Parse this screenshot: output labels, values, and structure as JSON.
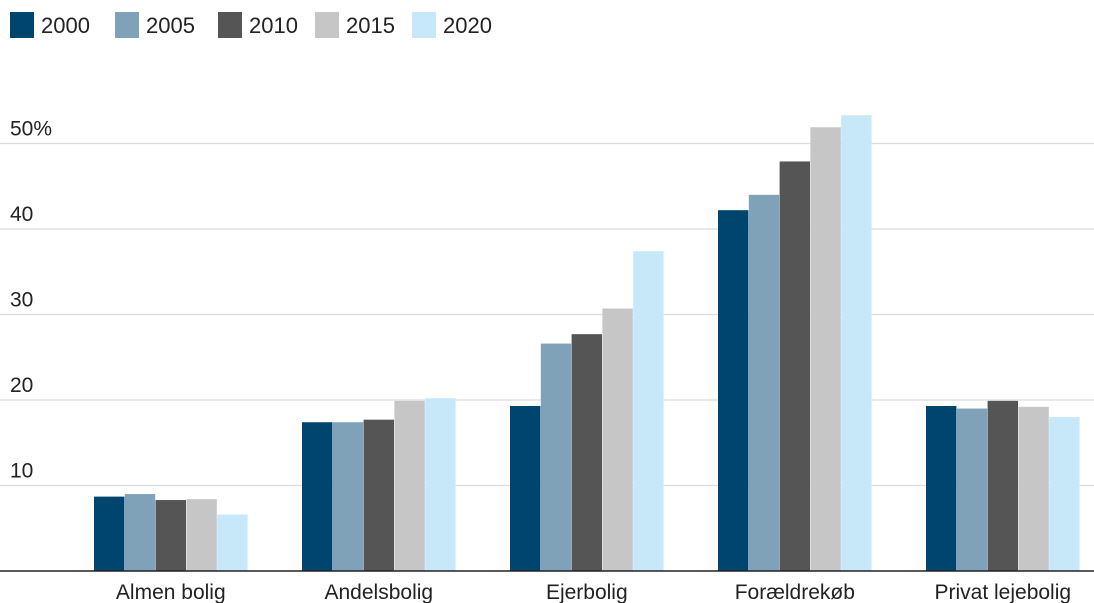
{
  "chart_data": {
    "type": "bar",
    "categories": [
      "Almen bolig",
      "Andelsbolig",
      "Ejerbolig",
      "Forældrekøb",
      "Privat lejebolig"
    ],
    "series": [
      {
        "name": "2000",
        "color": "#00456e",
        "values": [
          8.7,
          17.4,
          19.3,
          42.2,
          19.3
        ]
      },
      {
        "name": "2005",
        "color": "#7fa2b8",
        "values": [
          9.0,
          17.4,
          26.6,
          44.0,
          19.0
        ]
      },
      {
        "name": "2010",
        "color": "#555555",
        "values": [
          8.3,
          17.7,
          27.7,
          47.9,
          19.9
        ]
      },
      {
        "name": "2015",
        "color": "#c6c6c6",
        "values": [
          8.4,
          19.9,
          30.7,
          51.9,
          19.2
        ]
      },
      {
        "name": "2020",
        "color": "#c7e8f8",
        "values": [
          6.6,
          20.2,
          37.4,
          53.3,
          18.0
        ]
      }
    ],
    "yticks": [
      {
        "value": 10,
        "label": "10"
      },
      {
        "value": 20,
        "label": "20"
      },
      {
        "value": 30,
        "label": "30"
      },
      {
        "value": 40,
        "label": "40"
      },
      {
        "value": 50,
        "label": "50%"
      }
    ],
    "ylim": [
      0,
      55
    ],
    "grid": true,
    "legend": "top-left",
    "title": "",
    "xlabel": "",
    "ylabel": ""
  }
}
